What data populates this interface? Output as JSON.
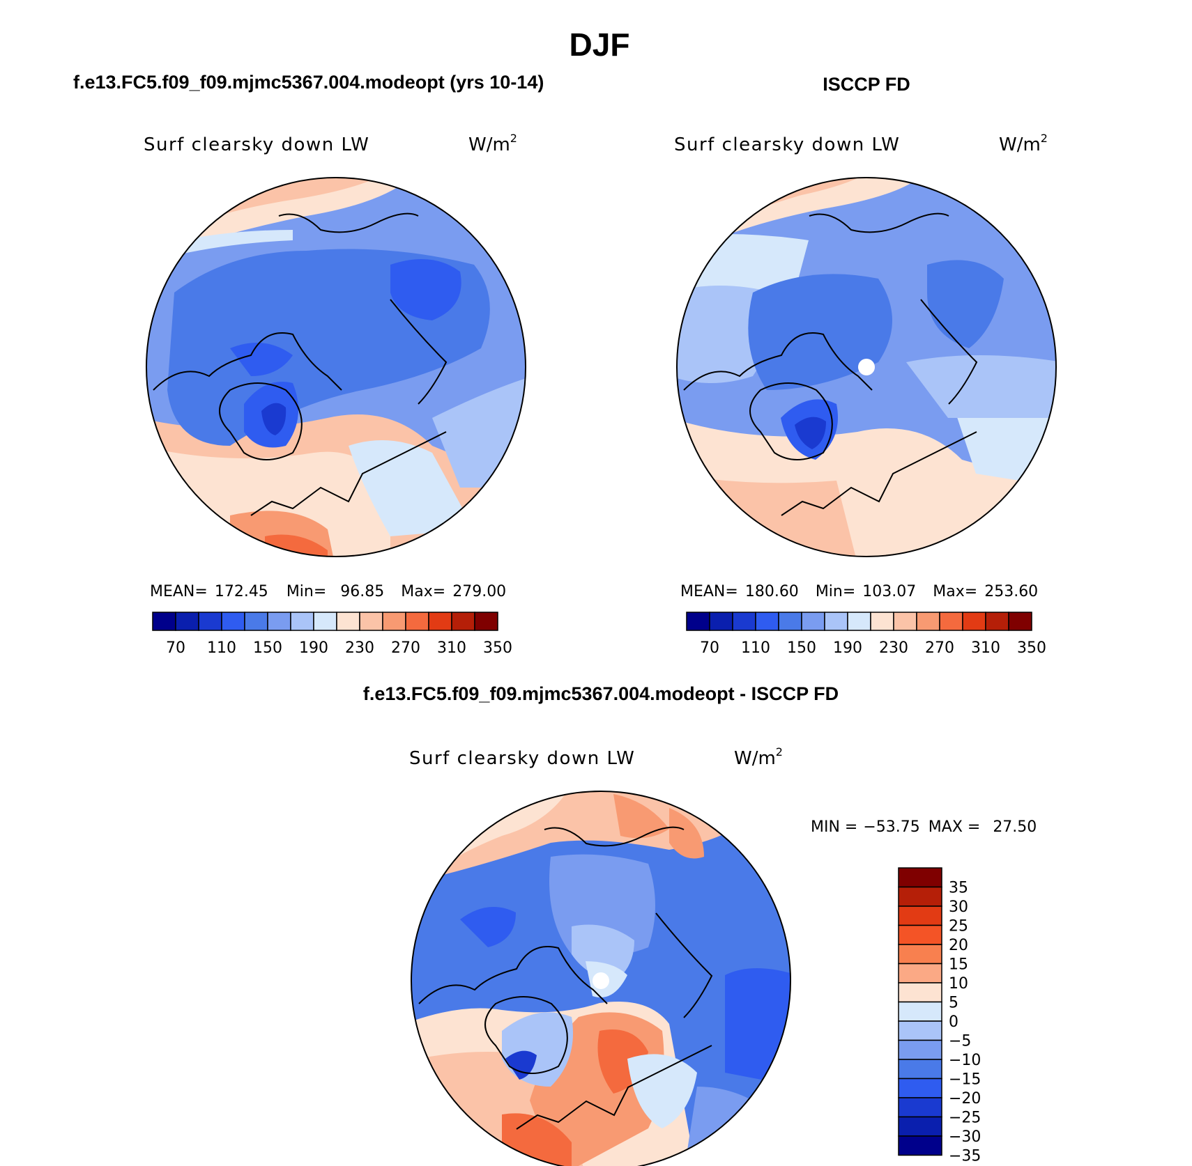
{
  "figure": {
    "title": "DJF"
  },
  "chart_data": [
    {
      "type": "heatmap",
      "projection": "north polar stereographic",
      "case_title": "f.e13.FC5.f09_f09.mjmc5367.004.modeopt (yrs 10-14)",
      "variable": "Surf clearsky down LW",
      "units_base": "W/m",
      "units_exp": "2",
      "stats": {
        "mean_label": "MEAN=",
        "mean": "172.45",
        "min_label": "Min=",
        "min": "96.85",
        "max_label": "Max=",
        "max": "279.00"
      },
      "levels": [
        70,
        90,
        110,
        130,
        150,
        170,
        190,
        210,
        230,
        250,
        270,
        290,
        310,
        330,
        350
      ],
      "tick_labels": [
        "70",
        "110",
        "150",
        "190",
        "230",
        "270",
        "310",
        "350"
      ],
      "colors": [
        "#00008b",
        "#0a1fae",
        "#1a3ad0",
        "#2f5cf0",
        "#4a7ae8",
        "#7a9cf0",
        "#aac4f8",
        "#d6e8fb",
        "#fde3d2",
        "#fbc3a8",
        "#f89a72",
        "#f46a3e",
        "#e23b14",
        "#b51f08",
        "#7f0000"
      ]
    },
    {
      "type": "heatmap",
      "projection": "north polar stereographic",
      "case_title": "ISCCP FD",
      "variable": "Surf clearsky down LW",
      "units_base": "W/m",
      "units_exp": "2",
      "stats": {
        "mean_label": "MEAN=",
        "mean": "180.60",
        "min_label": "Min=",
        "min": "103.07",
        "max_label": "Max=",
        "max": "253.60"
      },
      "levels": [
        70,
        90,
        110,
        130,
        150,
        170,
        190,
        210,
        230,
        250,
        270,
        290,
        310,
        330,
        350
      ],
      "tick_labels": [
        "70",
        "110",
        "150",
        "190",
        "230",
        "270",
        "310",
        "350"
      ],
      "colors": [
        "#00008b",
        "#0a1fae",
        "#1a3ad0",
        "#2f5cf0",
        "#4a7ae8",
        "#7a9cf0",
        "#aac4f8",
        "#d6e8fb",
        "#fde3d2",
        "#fbc3a8",
        "#f89a72",
        "#f46a3e",
        "#e23b14",
        "#b51f08",
        "#7f0000"
      ]
    },
    {
      "type": "heatmap",
      "projection": "north polar stereographic",
      "case_title": "f.e13.FC5.f09_f09.mjmc5367.004.modeopt - ISCCP FD",
      "variable": "Surf clearsky down LW",
      "units_base": "W/m",
      "units_exp": "2",
      "stats": {
        "min_label": "MIN =",
        "min": "−53.75",
        "max_label": "MAX =",
        "max": "27.50"
      },
      "levels": [
        35,
        30,
        25,
        20,
        15,
        10,
        5,
        0,
        -5,
        -10,
        -15,
        -20,
        -25,
        -30,
        -35
      ],
      "tick_labels": [
        "35",
        "30",
        "25",
        "20",
        "15",
        "10",
        "5",
        "0",
        "−5",
        "−10",
        "−15",
        "−20",
        "−25",
        "−30",
        "−35"
      ],
      "colors": [
        "#7f0000",
        "#b51f08",
        "#e23b14",
        "#f45426",
        "#f8804f",
        "#fba985",
        "#fde3d2",
        "#d6e8fb",
        "#aac4f8",
        "#7a9cf0",
        "#4a7ae8",
        "#2f5cf0",
        "#1a3ad0",
        "#0a1fae",
        "#00008b"
      ]
    }
  ]
}
